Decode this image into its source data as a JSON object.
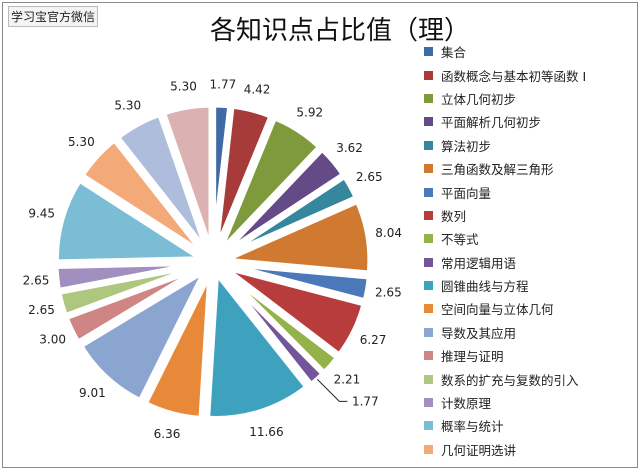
{
  "watermark": "学习宝官方微信",
  "chart_data": {
    "type": "pie",
    "title": "各知识点占比值（理）",
    "exploded": true,
    "legend_position": "right",
    "categories": [
      "集合",
      "函数概念与基本初等函数 I",
      "立体几何初步",
      "平面解析几何初步",
      "算法初步",
      "三角函数及解三角形",
      "平面向量",
      "数列",
      "不等式",
      "常用逻辑用语",
      "圆锥曲线与方程",
      "空间向量与立体几何",
      "导数及其应用",
      "推理与证明",
      "数系的扩充与复数的引入",
      "计数原理",
      "概率与统计",
      "几何证明选讲",
      "",
      ""
    ],
    "values": [
      1.77,
      4.42,
      5.92,
      3.62,
      2.65,
      8.04,
      2.65,
      6.27,
      2.21,
      1.77,
      11.66,
      6.36,
      9.01,
      3.0,
      2.65,
      2.65,
      9.45,
      5.3,
      5.3,
      5.3
    ],
    "labels": [
      "1.77",
      "4.42",
      "5.92",
      "3.62",
      "2.65",
      "8.04",
      "2.65",
      "6.27",
      "2.21",
      "1.77",
      "11.66",
      "6.36",
      "9.01",
      "3.00",
      "2.65",
      "2.65",
      "9.45",
      "5.30",
      "5.30",
      "5.30"
    ],
    "colors": [
      "#3e6aa6",
      "#a63b3a",
      "#7f9a3c",
      "#644a86",
      "#35879e",
      "#cf7a30",
      "#4a78b8",
      "#b83c3b",
      "#93b24a",
      "#72559a",
      "#3ea2be",
      "#e8893a",
      "#8aa5d0",
      "#cf8584",
      "#aec77f",
      "#a08fbf",
      "#7cbdd6",
      "#f4a978",
      "#adbddb",
      "#dbb1b1"
    ]
  }
}
